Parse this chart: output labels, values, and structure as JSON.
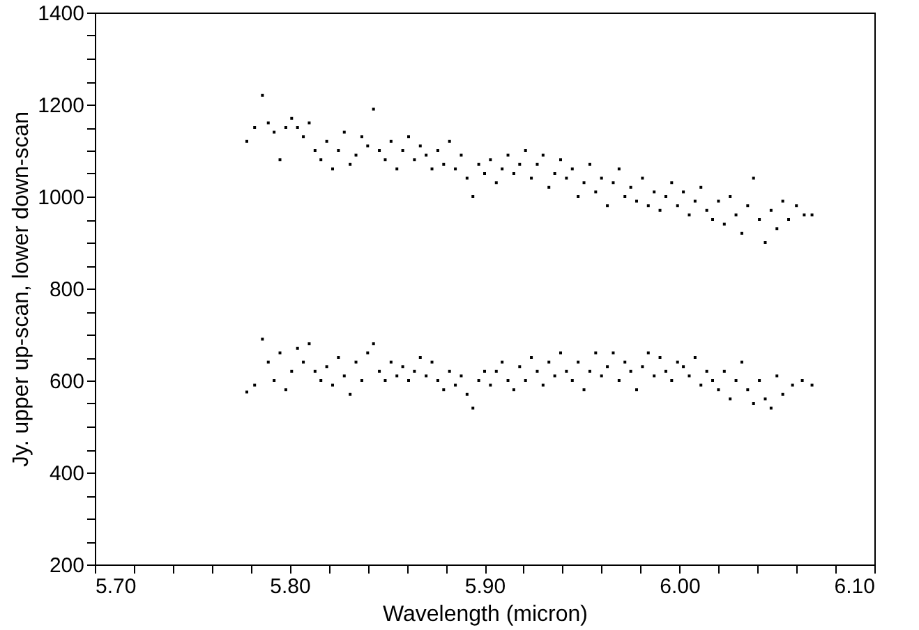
{
  "chart_data": {
    "type": "scatter",
    "xlabel": "Wavelength (micron)",
    "ylabel": "Jy. upper up-scan, lower down-scan",
    "xlim": [
      5.7,
      6.1
    ],
    "ylim": [
      200,
      1400
    ],
    "xticks": [
      {
        "value": 5.7,
        "label": "5.70"
      },
      {
        "value": 5.72,
        "label": null
      },
      {
        "value": 5.74,
        "label": null
      },
      {
        "value": 5.76,
        "label": null
      },
      {
        "value": 5.78,
        "label": null
      },
      {
        "value": 5.8,
        "label": "5.80"
      },
      {
        "value": 5.82,
        "label": null
      },
      {
        "value": 5.84,
        "label": null
      },
      {
        "value": 5.86,
        "label": null
      },
      {
        "value": 5.88,
        "label": null
      },
      {
        "value": 5.9,
        "label": "5.90"
      },
      {
        "value": 5.92,
        "label": null
      },
      {
        "value": 5.94,
        "label": null
      },
      {
        "value": 5.96,
        "label": null
      },
      {
        "value": 5.98,
        "label": null
      },
      {
        "value": 6.0,
        "label": "6.00"
      },
      {
        "value": 6.02,
        "label": null
      },
      {
        "value": 6.04,
        "label": null
      },
      {
        "value": 6.06,
        "label": null
      },
      {
        "value": 6.08,
        "label": null
      },
      {
        "value": 6.1,
        "label": "6.10"
      }
    ],
    "yticks": [
      200,
      {
        "value": 250,
        "label": null
      },
      {
        "value": 300,
        "label": null
      },
      {
        "value": 350,
        "label": null
      },
      400,
      {
        "value": 450,
        "label": null
      },
      {
        "value": 500,
        "label": null
      },
      {
        "value": 550,
        "label": null
      },
      600,
      {
        "value": 650,
        "label": null
      },
      {
        "value": 700,
        "label": null
      },
      {
        "value": 750,
        "label": null
      },
      800,
      {
        "value": 850,
        "label": null
      },
      {
        "value": 900,
        "label": null
      },
      {
        "value": 950,
        "label": null
      },
      1000,
      {
        "value": 1050,
        "label": null
      },
      {
        "value": 1100,
        "label": null
      },
      {
        "value": 1150,
        "label": null
      },
      1200,
      {
        "value": 1250,
        "label": null
      },
      {
        "value": 1300,
        "label": null
      },
      {
        "value": 1350,
        "label": null
      },
      1400
    ],
    "marker": "square",
    "series": [
      {
        "color": "#000000",
        "x": [
          5.778,
          5.782,
          5.786,
          5.789,
          5.792,
          5.795,
          5.798,
          5.801,
          5.804,
          5.807,
          5.81,
          5.813,
          5.816,
          5.819,
          5.822,
          5.825,
          5.828,
          5.831,
          5.834,
          5.837,
          5.84,
          5.843,
          5.846,
          5.849,
          5.852,
          5.855,
          5.858,
          5.861,
          5.864,
          5.867,
          5.87,
          5.873,
          5.876,
          5.879,
          5.882,
          5.885,
          5.888,
          5.891,
          5.894,
          5.897,
          5.9,
          5.903,
          5.906,
          5.909,
          5.912,
          5.915,
          5.918,
          5.921,
          5.924,
          5.927,
          5.93,
          5.933,
          5.936,
          5.939,
          5.942,
          5.945,
          5.948,
          5.951,
          5.954,
          5.957,
          5.96,
          5.963,
          5.966,
          5.969,
          5.972,
          5.975,
          5.978,
          5.981,
          5.984,
          5.987,
          5.99,
          5.993,
          5.996,
          5.999,
          6.002,
          6.005,
          6.008,
          6.011,
          6.014,
          6.017,
          6.02,
          6.023,
          6.026,
          6.029,
          6.032,
          6.035,
          6.038,
          6.041,
          6.044,
          6.047,
          6.05,
          6.053,
          6.056,
          6.06,
          6.064,
          6.068
        ],
        "values": [
          1120,
          1150,
          1220,
          1160,
          1140,
          1080,
          1150,
          1170,
          1150,
          1130,
          1160,
          1100,
          1080,
          1120,
          1060,
          1100,
          1140,
          1070,
          1090,
          1130,
          1110,
          1190,
          1100,
          1080,
          1120,
          1060,
          1100,
          1130,
          1080,
          1110,
          1090,
          1060,
          1100,
          1070,
          1120,
          1060,
          1090,
          1040,
          1000,
          1070,
          1050,
          1080,
          1030,
          1060,
          1090,
          1050,
          1070,
          1100,
          1040,
          1070,
          1090,
          1020,
          1050,
          1080,
          1040,
          1060,
          1000,
          1030,
          1070,
          1010,
          1040,
          980,
          1030,
          1060,
          1000,
          1020,
          990,
          1040,
          980,
          1010,
          970,
          1000,
          1030,
          980,
          1010,
          960,
          990,
          1020,
          970,
          950,
          990,
          940,
          1000,
          960,
          920,
          980,
          1040,
          950,
          900,
          970,
          930,
          990,
          950,
          980,
          960,
          960
        ]
      },
      {
        "color": "#000000",
        "x": [
          5.778,
          5.782,
          5.786,
          5.789,
          5.792,
          5.795,
          5.798,
          5.801,
          5.804,
          5.807,
          5.81,
          5.813,
          5.816,
          5.819,
          5.822,
          5.825,
          5.828,
          5.831,
          5.834,
          5.837,
          5.84,
          5.843,
          5.846,
          5.849,
          5.852,
          5.855,
          5.858,
          5.861,
          5.864,
          5.867,
          5.87,
          5.873,
          5.876,
          5.879,
          5.882,
          5.885,
          5.888,
          5.891,
          5.894,
          5.897,
          5.9,
          5.903,
          5.906,
          5.909,
          5.912,
          5.915,
          5.918,
          5.921,
          5.924,
          5.927,
          5.93,
          5.933,
          5.936,
          5.939,
          5.942,
          5.945,
          5.948,
          5.951,
          5.954,
          5.957,
          5.96,
          5.963,
          5.966,
          5.969,
          5.972,
          5.975,
          5.978,
          5.981,
          5.984,
          5.987,
          5.99,
          5.993,
          5.996,
          5.999,
          6.002,
          6.005,
          6.008,
          6.011,
          6.014,
          6.017,
          6.02,
          6.023,
          6.026,
          6.029,
          6.032,
          6.035,
          6.038,
          6.041,
          6.044,
          6.047,
          6.05,
          6.053,
          6.058,
          6.063,
          6.068
        ],
        "values": [
          575,
          590,
          690,
          640,
          600,
          660,
          580,
          620,
          670,
          640,
          680,
          620,
          600,
          630,
          590,
          650,
          610,
          570,
          640,
          600,
          660,
          680,
          620,
          600,
          640,
          610,
          630,
          600,
          620,
          650,
          610,
          640,
          600,
          580,
          620,
          590,
          610,
          570,
          540,
          600,
          620,
          590,
          620,
          640,
          600,
          580,
          630,
          600,
          650,
          620,
          590,
          640,
          610,
          660,
          620,
          600,
          640,
          580,
          620,
          660,
          610,
          630,
          660,
          600,
          640,
          620,
          580,
          630,
          660,
          610,
          650,
          620,
          600,
          640,
          630,
          610,
          650,
          590,
          620,
          600,
          580,
          620,
          560,
          600,
          640,
          580,
          550,
          600,
          560,
          540,
          610,
          570,
          590,
          600,
          590
        ]
      }
    ]
  }
}
